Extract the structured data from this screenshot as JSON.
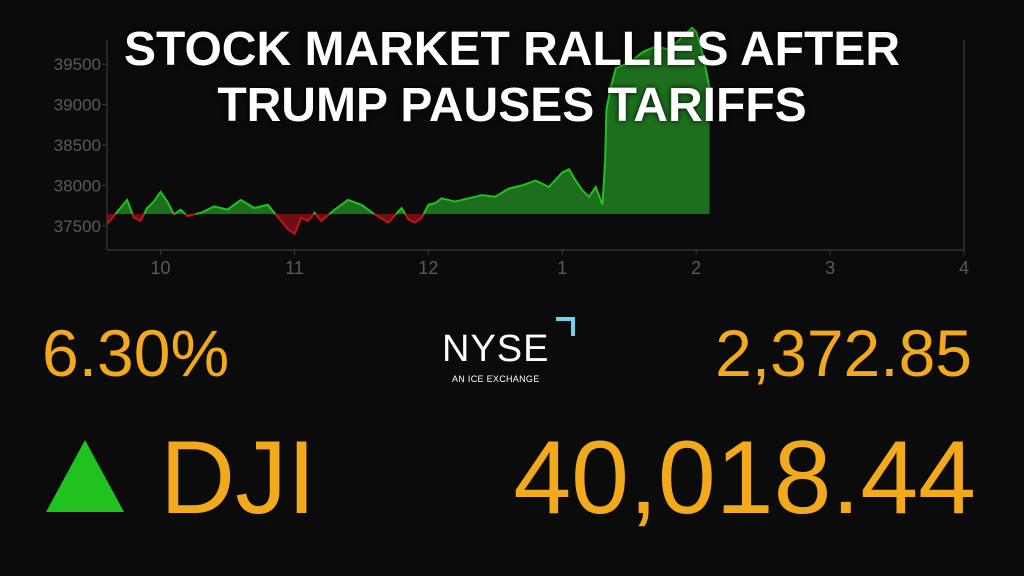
{
  "headline": {
    "line1": "STOCK MARKET RALLIES AFTER",
    "line2": "TRUMP PAUSES TARIFFS"
  },
  "ticker": {
    "percent_change": "6.30%",
    "points_change": "2,372.85",
    "symbol": "DJI",
    "value": "40,018.44",
    "direction_icon": "up-triangle-icon"
  },
  "exchange_logo": {
    "name": "NYSE",
    "tagline": "AN ICE EXCHANGE"
  },
  "colors": {
    "accent": "#f2a91c",
    "up": "#1fc21f",
    "down": "#c0141c",
    "gain_fill": "#1f7a1f",
    "loss_fill": "#7a0f14",
    "grid": "#3a3a3a",
    "tick_label": "#5a5a5a",
    "logo_corner": "#6fd3f0"
  },
  "chart_data": {
    "type": "area",
    "title": "",
    "xlabel": "",
    "ylabel": "",
    "baseline": 37645,
    "xlim": [
      9.6,
      16.0
    ],
    "ylim": [
      37200,
      39800
    ],
    "x_ticks": [
      10,
      11,
      12,
      13,
      14,
      15,
      16
    ],
    "x_tick_labels": [
      "10",
      "11",
      "12",
      "1",
      "2",
      "3",
      "4"
    ],
    "y_ticks": [
      37500,
      38000,
      38500,
      39000,
      39500
    ],
    "y_tick_labels": [
      "37500",
      "38000",
      "38500",
      "39000",
      "39500"
    ],
    "grid": false,
    "series": [
      {
        "x": [
          9.6,
          9.7,
          9.75,
          9.8,
          9.85,
          9.9,
          9.95,
          10.0,
          10.05,
          10.1,
          10.15,
          10.2,
          10.3,
          10.4,
          10.5,
          10.6,
          10.7,
          10.8,
          10.9,
          10.95,
          11.0,
          11.05,
          11.1,
          11.15,
          11.2,
          11.3,
          11.4,
          11.5,
          11.6,
          11.7,
          11.8,
          11.85,
          11.9,
          11.95,
          12.0,
          12.05,
          12.1,
          12.2,
          12.3,
          12.4,
          12.5,
          12.6,
          12.7,
          12.8,
          12.9,
          13.0,
          13.05,
          13.1,
          13.15,
          13.2,
          13.25,
          13.3,
          13.32,
          13.33,
          13.36,
          13.4,
          13.5,
          13.6,
          13.7,
          13.8,
          13.9,
          13.97,
          14.0,
          14.05,
          14.1
        ],
        "y": [
          37520,
          37720,
          37820,
          37600,
          37560,
          37720,
          37800,
          37920,
          37800,
          37640,
          37700,
          37620,
          37660,
          37740,
          37700,
          37820,
          37720,
          37760,
          37560,
          37460,
          37400,
          37600,
          37560,
          37660,
          37560,
          37700,
          37820,
          37760,
          37640,
          37540,
          37720,
          37580,
          37540,
          37600,
          37760,
          37780,
          37840,
          37800,
          37840,
          37880,
          37860,
          37960,
          38000,
          38060,
          37980,
          38160,
          38200,
          38060,
          37940,
          37860,
          37980,
          37760,
          38300,
          38940,
          39200,
          39450,
          39520,
          39650,
          39720,
          39680,
          39850,
          39950,
          39900,
          39620,
          39200
        ],
        "fill_above": "#1f7a1f",
        "fill_below": "#7a0f14"
      }
    ]
  }
}
